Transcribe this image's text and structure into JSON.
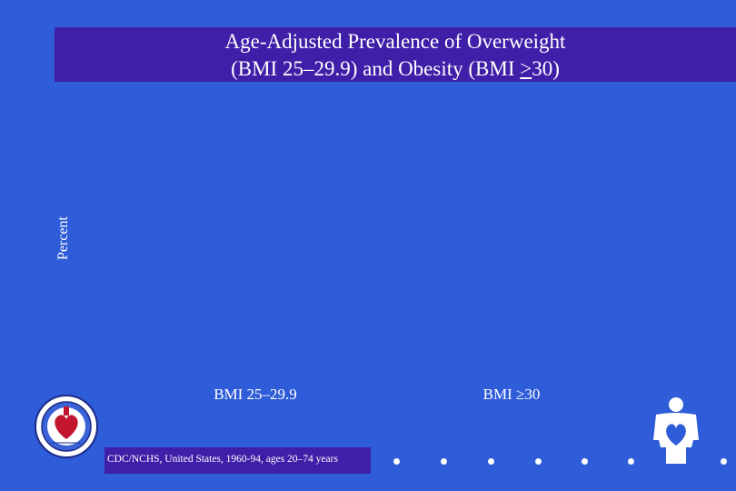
{
  "title": {
    "line1": "Age-Adjusted Prevalence of Overweight",
    "line2_prefix": "(BMI 25–29.9) and Obesity (BMI ",
    "line2_gt": ">",
    "line2_suffix": "30)"
  },
  "chart_data": {
    "type": "bar",
    "title": "Age-Adjusted Prevalence of Overweight (BMI 25–29.9) and Obesity (BMI >30)",
    "ylabel": "Percent",
    "categories": [
      "BMI 25–29.9",
      "BMI ≥30"
    ],
    "series": []
  },
  "footer": {
    "source": "CDC/NCHS, United States, 1960-94, ages 20–74 years"
  },
  "logos": {
    "seal": "NHLBI seal",
    "heart_person": "heart-person-icon"
  },
  "colors": {
    "background": "#2f5cd8",
    "title_bar": "#3f1fa8",
    "text": "#ffffff"
  }
}
